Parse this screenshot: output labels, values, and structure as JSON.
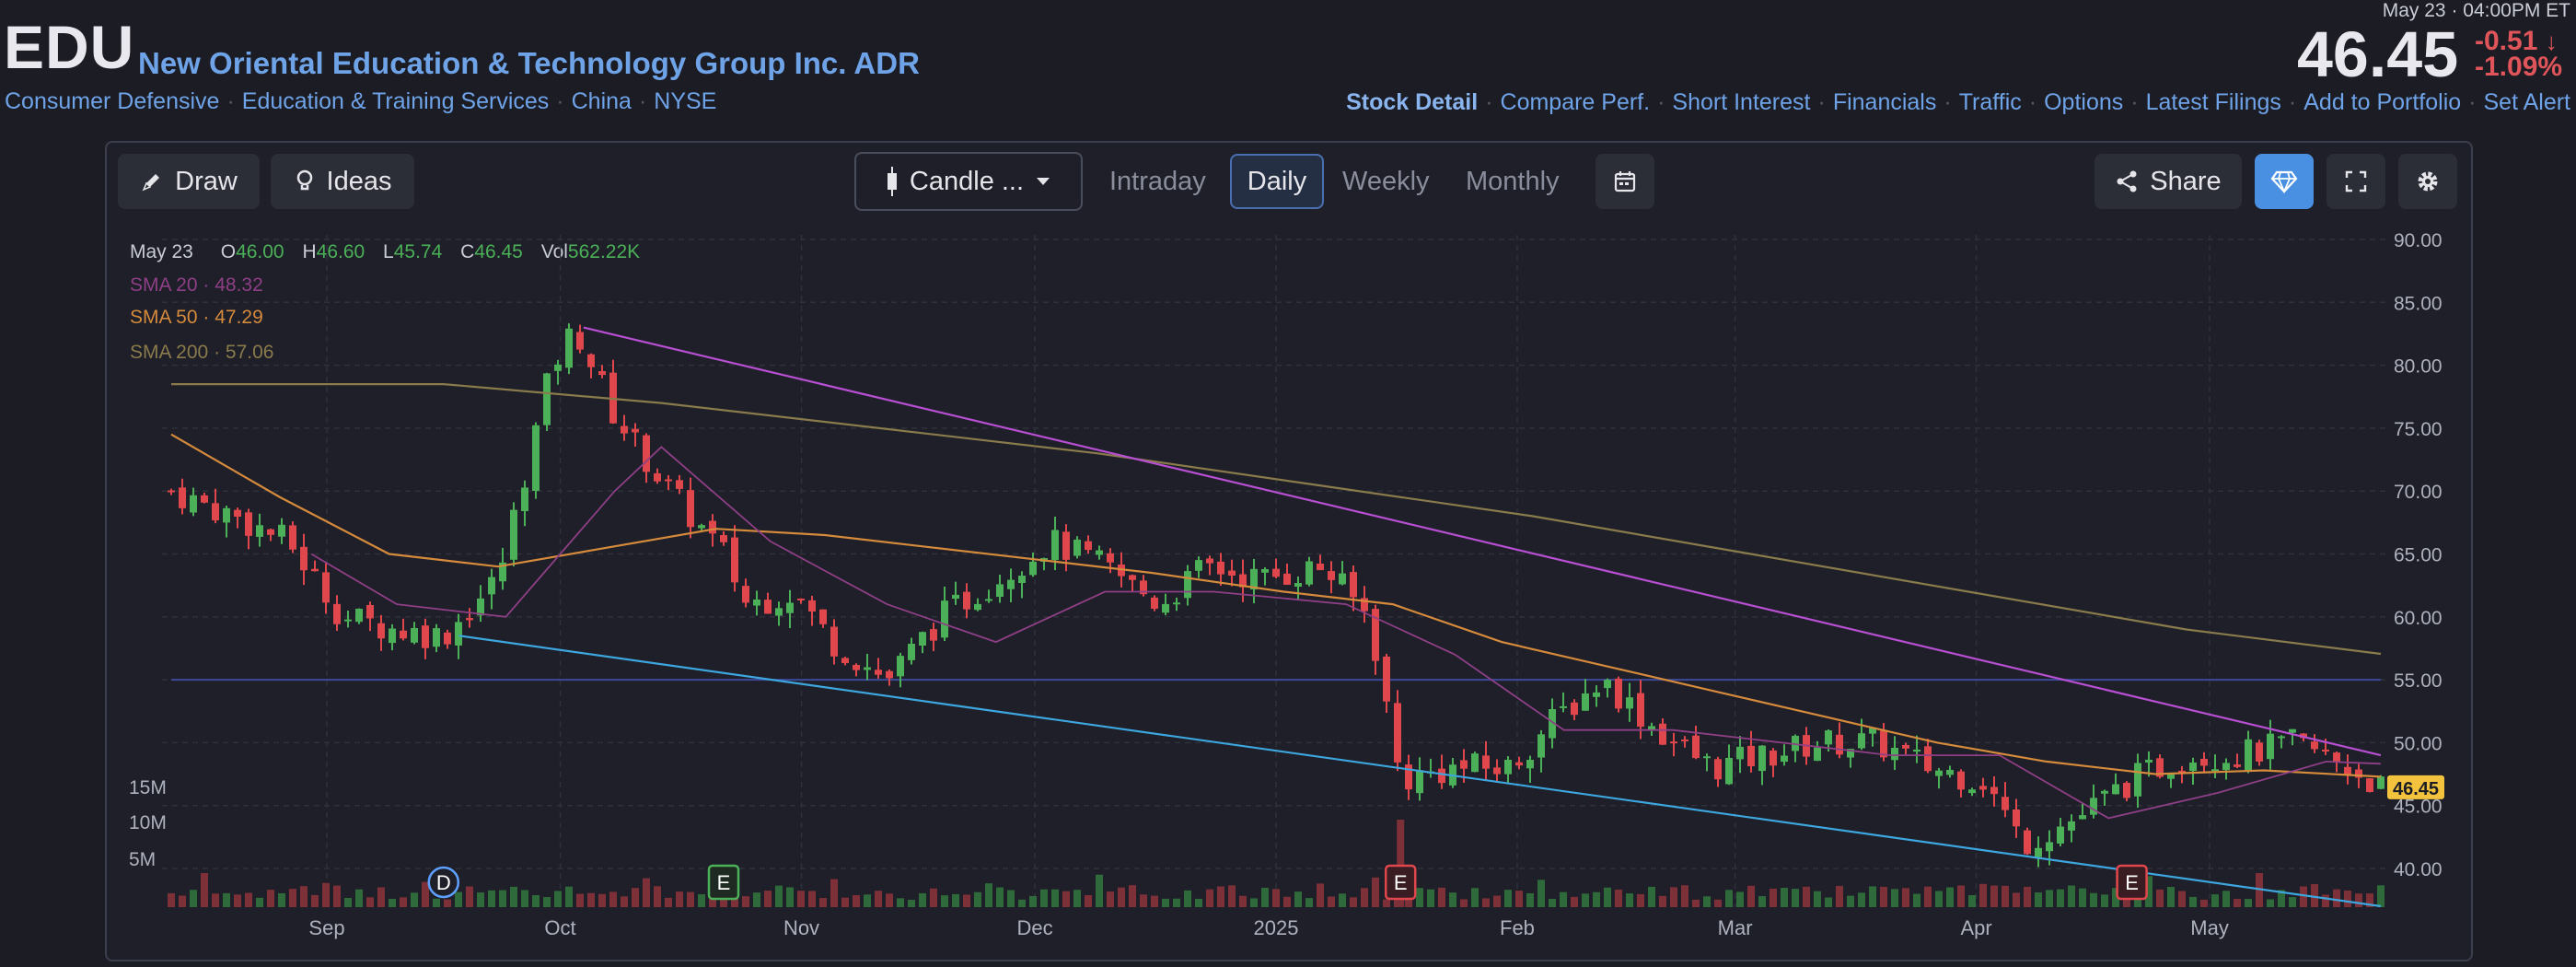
{
  "header": {
    "ticker": "EDU",
    "company": "New Oriental Education & Technology Group Inc. ADR",
    "categories": [
      "Consumer Defensive",
      "Education & Training Services",
      "China",
      "NYSE"
    ],
    "quote_time": "May 23 · 04:00PM ET",
    "price": "46.45",
    "change": "-0.51",
    "change_pct": "-1.09%",
    "nav": [
      "Stock Detail",
      "Compare Perf.",
      "Short Interest",
      "Financials",
      "Traffic",
      "Options",
      "Latest Filings",
      "Add to Portfolio",
      "Set Alert"
    ]
  },
  "toolbar": {
    "draw": "Draw",
    "ideas": "Ideas",
    "chart_type": "Candle ...",
    "timeframes": [
      "Intraday",
      "Daily",
      "Weekly",
      "Monthly"
    ],
    "active_timeframe": "Daily",
    "share": "Share"
  },
  "legend": {
    "date": "May 23",
    "ohlc": [
      {
        "k": "O",
        "v": "46.00"
      },
      {
        "k": "H",
        "v": "46.60"
      },
      {
        "k": "L",
        "v": "45.74"
      },
      {
        "k": "C",
        "v": "46.45"
      },
      {
        "k": "Vol",
        "v": "562.22K"
      }
    ],
    "sma": [
      {
        "name": "SMA 20",
        "value": "48.32",
        "color": "#8e3f86"
      },
      {
        "name": "SMA 50",
        "value": "47.29",
        "color": "#d58a3c"
      },
      {
        "name": "SMA 200",
        "value": "57.06",
        "color": "#8a7b4c"
      }
    ]
  },
  "colors": {
    "up": "#4bb057",
    "down": "#e0474c",
    "upper_trend": "#b84fd3",
    "lower_trend": "#3ea6df",
    "hline": "#3d4a9a",
    "last_price_tag": "#f3c33e"
  },
  "chart_data": {
    "type": "candlestick",
    "title": "",
    "ylim": [
      37,
      90
    ],
    "y_ticks": [
      "90.00",
      "85.00",
      "80.00",
      "75.00",
      "70.00",
      "65.00",
      "60.00",
      "55.00",
      "50.00",
      "45.00",
      "40.00"
    ],
    "x_ticks": [
      "Sep",
      "Oct",
      "Nov",
      "Dec",
      "2025",
      "Feb",
      "Mar",
      "Apr",
      "May"
    ],
    "volume_ticks": [
      "15M",
      "10M",
      "5M"
    ],
    "last_price": "46.45",
    "horizontal_line": 55,
    "price_path": [
      [
        "2024-08-12",
        70
      ],
      [
        "2024-08-20",
        68
      ],
      [
        "2024-08-27",
        66
      ],
      [
        "2024-09-03",
        60
      ],
      [
        "2024-09-10",
        59
      ],
      [
        "2024-09-16",
        58.5
      ],
      [
        "2024-09-23",
        63
      ],
      [
        "2024-09-30",
        80
      ],
      [
        "2024-10-03",
        83
      ],
      [
        "2024-10-08",
        76
      ],
      [
        "2024-10-15",
        70
      ],
      [
        "2024-10-22",
        65
      ],
      [
        "2024-10-25",
        61
      ],
      [
        "2024-10-31",
        62
      ],
      [
        "2024-11-05",
        58
      ],
      [
        "2024-11-12",
        55
      ],
      [
        "2024-11-19",
        60
      ],
      [
        "2024-11-26",
        63
      ],
      [
        "2024-12-03",
        66
      ],
      [
        "2024-12-10",
        64
      ],
      [
        "2024-12-17",
        61
      ],
      [
        "2024-12-23",
        64
      ],
      [
        "2024-12-30",
        63
      ],
      [
        "2025-01-07",
        64
      ],
      [
        "2025-01-13",
        60
      ],
      [
        "2025-01-17",
        47
      ],
      [
        "2025-01-24",
        48
      ],
      [
        "2025-01-31",
        48
      ],
      [
        "2025-02-06",
        52
      ],
      [
        "2025-02-12",
        55
      ],
      [
        "2025-02-19",
        51
      ],
      [
        "2025-02-26",
        48
      ],
      [
        "2025-03-05",
        49
      ],
      [
        "2025-03-12",
        50
      ],
      [
        "2025-03-19",
        50
      ],
      [
        "2025-03-26",
        48
      ],
      [
        "2025-04-02",
        47
      ],
      [
        "2025-04-07",
        42
      ],
      [
        "2025-04-14",
        44
      ],
      [
        "2025-04-21",
        47
      ],
      [
        "2025-04-28",
        49
      ],
      [
        "2025-05-05",
        49
      ],
      [
        "2025-05-12",
        50
      ],
      [
        "2025-05-19",
        48
      ],
      [
        "2025-05-23",
        46.45
      ]
    ],
    "sma_20": [
      [
        "2024-08-30",
        65
      ],
      [
        "2024-09-10",
        61
      ],
      [
        "2024-09-24",
        60
      ],
      [
        "2024-10-08",
        70
      ],
      [
        "2024-10-14",
        73.5
      ],
      [
        "2024-10-28",
        66
      ],
      [
        "2024-11-12",
        61
      ],
      [
        "2024-11-26",
        58
      ],
      [
        "2024-12-10",
        62
      ],
      [
        "2024-12-24",
        62
      ],
      [
        "2025-01-10",
        61
      ],
      [
        "2025-01-24",
        57
      ],
      [
        "2025-02-07",
        51
      ],
      [
        "2025-02-21",
        51
      ],
      [
        "2025-03-07",
        50
      ],
      [
        "2025-03-21",
        49
      ],
      [
        "2025-04-04",
        49
      ],
      [
        "2025-04-18",
        44
      ],
      [
        "2025-05-02",
        46
      ],
      [
        "2025-05-16",
        48.5
      ],
      [
        "2025-05-23",
        48.32
      ]
    ],
    "sma_50": [
      [
        "2024-08-12",
        74.5
      ],
      [
        "2024-08-26",
        69.5
      ],
      [
        "2024-09-09",
        65
      ],
      [
        "2024-09-23",
        64
      ],
      [
        "2024-10-07",
        65.5
      ],
      [
        "2024-10-21",
        67
      ],
      [
        "2024-11-04",
        66.5
      ],
      [
        "2024-11-18",
        65.5
      ],
      [
        "2024-12-02",
        64.5
      ],
      [
        "2024-12-16",
        63.5
      ],
      [
        "2025-01-02",
        62
      ],
      [
        "2025-01-16",
        61
      ],
      [
        "2025-01-30",
        58
      ],
      [
        "2025-02-13",
        56
      ],
      [
        "2025-02-27",
        54
      ],
      [
        "2025-03-13",
        52
      ],
      [
        "2025-03-27",
        50
      ],
      [
        "2025-04-10",
        48.5
      ],
      [
        "2025-04-24",
        47.5
      ],
      [
        "2025-05-08",
        47.8
      ],
      [
        "2025-05-23",
        47.29
      ]
    ],
    "sma_200": [
      [
        "2024-08-12",
        78.5
      ],
      [
        "2024-09-16",
        78.5
      ],
      [
        "2024-10-14",
        77
      ],
      [
        "2024-11-11",
        75
      ],
      [
        "2024-12-09",
        73
      ],
      [
        "2025-01-06",
        70.5
      ],
      [
        "2025-02-03",
        68
      ],
      [
        "2025-03-03",
        65
      ],
      [
        "2025-03-31",
        62
      ],
      [
        "2025-04-28",
        59
      ],
      [
        "2025-05-23",
        57.06
      ]
    ],
    "upper_trendline": [
      [
        "2024-10-04",
        83
      ],
      [
        "2025-05-23",
        49
      ]
    ],
    "lower_trendline": [
      [
        "2024-09-18",
        58.5
      ],
      [
        "2025-05-23",
        37
      ]
    ],
    "events": [
      {
        "label": "D",
        "date": "2024-09-16",
        "type": "dividend"
      },
      {
        "label": "E",
        "date": "2024-10-22",
        "type": "earnings-past"
      },
      {
        "label": "E",
        "date": "2025-01-17",
        "type": "earnings"
      },
      {
        "label": "E",
        "date": "2025-04-21",
        "type": "earnings"
      }
    ],
    "ohlc_last": {
      "date": "May 23",
      "open": 46.0,
      "high": 46.6,
      "low": 45.74,
      "close": 46.45,
      "volume": "562.22K"
    }
  }
}
